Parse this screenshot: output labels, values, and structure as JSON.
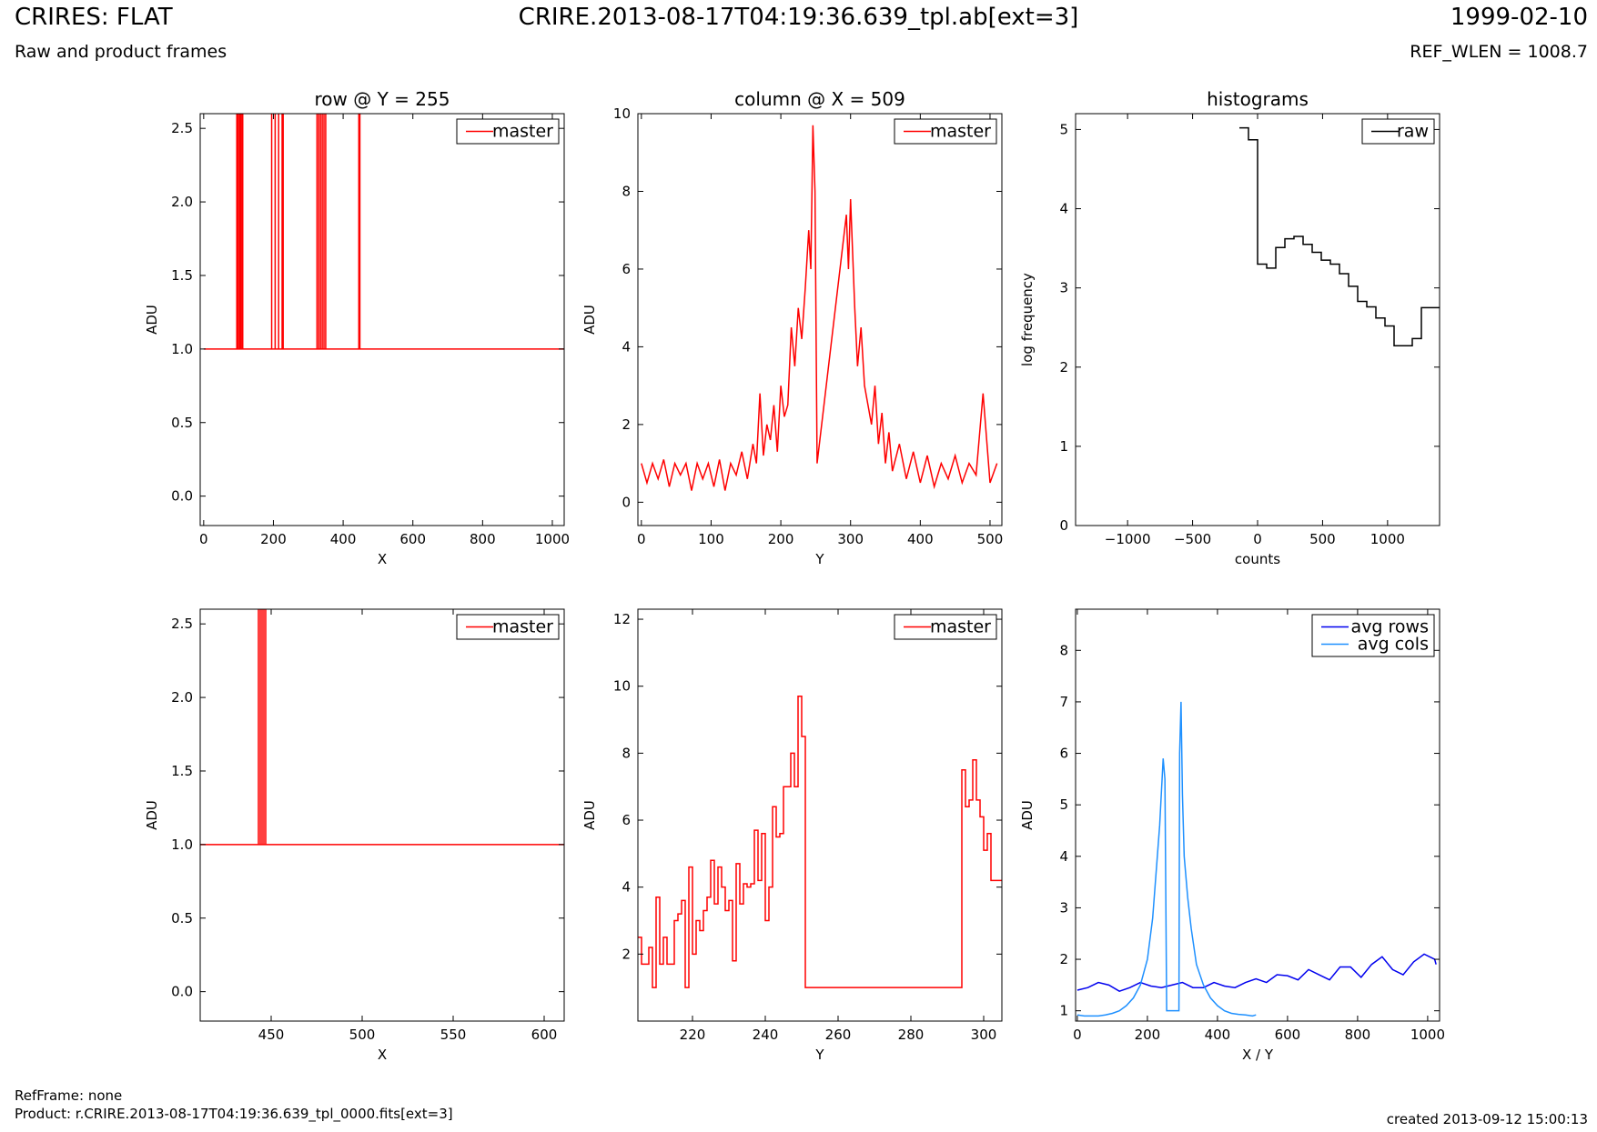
{
  "header": {
    "title": "CRIRES: FLAT",
    "subtitle": "Raw and product frames",
    "file": "CRIRE.2013-08-17T04:19:36.639_tpl.ab[ext=3]",
    "date": "1999-02-10",
    "ref_wlen": "REF_WLEN = 1008.7"
  },
  "footer": {
    "ref_frame": "RefFrame: none",
    "product": "Product: r.CRIRE.2013-08-17T04:19:36.639_tpl_0000.fits[ext=3]",
    "created": "created 2013-09-12 15:00:13"
  },
  "colors": {
    "master": "#ff0000",
    "raw": "#000000",
    "avg_rows": "#0000ee",
    "avg_cols": "#1e90ff"
  },
  "chart_data": [
    {
      "id": "row-plot",
      "type": "line",
      "title": "row @ Y = 255",
      "xlabel": "X",
      "ylabel": "ADU",
      "xlim": [
        -10,
        1034
      ],
      "ylim": [
        -0.2,
        2.6
      ],
      "xticks": [
        0,
        200,
        400,
        600,
        800,
        1000
      ],
      "yticks": [
        0.0,
        0.5,
        1.0,
        1.5,
        2.0,
        2.5
      ],
      "legend": "top-right",
      "series": [
        {
          "name": "master",
          "color": "#ff0000",
          "baseline": 1.0,
          "spikes": [
            95,
            98,
            102,
            105,
            108,
            112,
            195,
            205,
            215,
            225,
            228,
            325,
            330,
            335,
            340,
            345,
            350,
            445,
            448
          ],
          "spike_value": 2.6,
          "x_range": [
            0,
            1034
          ]
        }
      ]
    },
    {
      "id": "column-plot",
      "type": "line",
      "title": "column @ X = 509",
      "xlabel": "Y",
      "ylabel": "ADU",
      "xlim": [
        -5,
        517
      ],
      "ylim": [
        -0.6,
        10.0
      ],
      "xticks": [
        0,
        100,
        200,
        300,
        400,
        500
      ],
      "yticks": [
        0,
        2,
        4,
        6,
        8,
        10
      ],
      "legend": "top-right",
      "series": [
        {
          "name": "master",
          "color": "#ff0000",
          "x": [
            0,
            8,
            16,
            24,
            32,
            40,
            48,
            56,
            64,
            72,
            80,
            88,
            96,
            104,
            112,
            120,
            128,
            136,
            144,
            152,
            160,
            165,
            170,
            175,
            180,
            185,
            190,
            195,
            200,
            205,
            210,
            215,
            220,
            225,
            230,
            235,
            240,
            243,
            246,
            249,
            252,
            294,
            297,
            300,
            303,
            306,
            310,
            315,
            320,
            325,
            330,
            335,
            340,
            345,
            350,
            355,
            360,
            370,
            380,
            390,
            400,
            410,
            420,
            430,
            440,
            450,
            460,
            470,
            480,
            490,
            500,
            510
          ],
          "y": [
            1.0,
            0.5,
            1.0,
            0.6,
            1.1,
            0.4,
            1.0,
            0.7,
            1.0,
            0.3,
            1.0,
            0.6,
            1.0,
            0.4,
            1.1,
            0.3,
            1.0,
            0.7,
            1.3,
            0.6,
            1.5,
            1.0,
            2.8,
            1.2,
            2.0,
            1.6,
            2.5,
            1.3,
            3.0,
            2.2,
            2.5,
            4.5,
            3.5,
            5.0,
            4.2,
            5.5,
            7.0,
            6.0,
            9.7,
            8.0,
            1.0,
            7.4,
            6.0,
            7.8,
            6.4,
            5.0,
            3.5,
            4.5,
            3.0,
            2.5,
            2.0,
            3.0,
            1.5,
            2.3,
            1.0,
            1.8,
            0.8,
            1.5,
            0.6,
            1.3,
            0.5,
            1.2,
            0.4,
            1.0,
            0.6,
            1.2,
            0.5,
            1.0,
            0.7,
            2.8,
            0.5,
            1.0
          ]
        }
      ]
    },
    {
      "id": "histogram-plot",
      "type": "line",
      "title": "histograms",
      "xlabel": "counts",
      "ylabel": "log frequency",
      "xlim": [
        -1400,
        1400
      ],
      "ylim": [
        0,
        5.2
      ],
      "xticks": [
        -1000,
        -500,
        0,
        500,
        1000
      ],
      "yticks": [
        0,
        1,
        2,
        3,
        4,
        5
      ],
      "legend": "top-right",
      "series": [
        {
          "name": "raw",
          "color": "#000000",
          "step": true,
          "x": [
            -140,
            -70,
            0,
            70,
            140,
            210,
            280,
            350,
            420,
            490,
            560,
            630,
            700,
            770,
            840,
            910,
            980,
            1050,
            1120,
            1190,
            1260,
            1330,
            1400
          ],
          "y": [
            5.02,
            4.87,
            3.3,
            3.25,
            3.51,
            3.62,
            3.65,
            3.55,
            3.45,
            3.35,
            3.3,
            3.18,
            3.02,
            2.83,
            2.76,
            2.62,
            2.52,
            2.27,
            2.27,
            2.36,
            2.75,
            2.75,
            2.75
          ]
        }
      ]
    },
    {
      "id": "row-zoom-plot",
      "type": "line",
      "title": "",
      "xlabel": "X",
      "ylabel": "ADU",
      "xlim": [
        411,
        611
      ],
      "ylim": [
        -0.2,
        2.6
      ],
      "xticks": [
        450,
        500,
        550,
        600
      ],
      "yticks": [
        0.0,
        0.5,
        1.0,
        1.5,
        2.0,
        2.5
      ],
      "legend": "top-right",
      "series": [
        {
          "name": "master",
          "color": "#ff0000",
          "baseline": 1.0,
          "spikes": [
            443,
            444,
            445,
            446,
            447
          ],
          "spike_value": 2.6,
          "x_range": [
            411,
            611
          ]
        }
      ]
    },
    {
      "id": "column-zoom-plot",
      "type": "line",
      "title": "",
      "xlabel": "Y",
      "ylabel": "ADU",
      "xlim": [
        205,
        305
      ],
      "ylim": [
        0,
        12.3
      ],
      "xticks": [
        220,
        240,
        260,
        280,
        300
      ],
      "yticks": [
        2,
        4,
        6,
        8,
        10,
        12
      ],
      "legend": "top-right",
      "series": [
        {
          "name": "master",
          "color": "#ff0000",
          "step": true,
          "x": [
            205,
            206,
            208,
            209,
            210,
            211,
            212,
            213,
            214,
            215,
            216,
            217,
            218,
            219,
            220,
            221,
            222,
            223,
            224,
            225,
            226,
            227,
            228,
            229,
            230,
            231,
            232,
            233,
            234,
            235,
            236,
            237,
            238,
            239,
            240,
            241,
            242,
            243,
            244,
            245,
            246,
            247,
            248,
            249,
            250,
            251,
            252,
            294,
            295,
            296,
            297,
            298,
            299,
            300,
            301,
            302,
            303,
            304,
            305
          ],
          "y": [
            2.5,
            1.7,
            2.2,
            1.0,
            3.7,
            1.7,
            2.5,
            1.7,
            1.7,
            3.0,
            3.2,
            3.6,
            1.0,
            4.6,
            2.0,
            3.0,
            2.7,
            3.3,
            3.7,
            4.8,
            3.5,
            4.6,
            4.0,
            3.3,
            3.6,
            1.8,
            4.7,
            3.5,
            4.1,
            4.0,
            4.1,
            5.7,
            4.2,
            5.6,
            3.0,
            4.0,
            6.4,
            5.5,
            5.6,
            7.0,
            7.0,
            8.0,
            7.0,
            9.7,
            8.5,
            1.0,
            1.0,
            7.5,
            6.4,
            6.6,
            7.8,
            6.6,
            6.1,
            5.1,
            5.6,
            4.2,
            4.2,
            4.2,
            4.2
          ]
        }
      ]
    },
    {
      "id": "average-plot",
      "type": "line",
      "title": "",
      "xlabel": "X / Y",
      "ylabel": "ADU",
      "xlim": [
        -5,
        1034
      ],
      "ylim": [
        0.8,
        8.8
      ],
      "xticks": [
        0,
        200,
        400,
        600,
        800,
        1000
      ],
      "yticks": [
        1,
        2,
        3,
        4,
        5,
        6,
        7,
        8
      ],
      "legend": "top-right",
      "series": [
        {
          "name": "avg rows",
          "color": "#0000ee",
          "x": [
            0,
            30,
            60,
            90,
            120,
            150,
            180,
            210,
            240,
            270,
            300,
            330,
            360,
            390,
            420,
            450,
            480,
            510,
            540,
            570,
            600,
            630,
            660,
            690,
            720,
            750,
            780,
            810,
            840,
            870,
            900,
            930,
            960,
            990,
            1020,
            1024
          ],
          "y": [
            1.4,
            1.45,
            1.55,
            1.5,
            1.38,
            1.45,
            1.55,
            1.48,
            1.45,
            1.5,
            1.55,
            1.45,
            1.45,
            1.55,
            1.48,
            1.45,
            1.55,
            1.62,
            1.55,
            1.7,
            1.68,
            1.6,
            1.8,
            1.7,
            1.6,
            1.85,
            1.85,
            1.65,
            1.9,
            2.05,
            1.8,
            1.7,
            1.95,
            2.1,
            2.0,
            1.9
          ]
        },
        {
          "name": "avg cols",
          "color": "#1e90ff",
          "x": [
            0,
            20,
            40,
            60,
            80,
            100,
            120,
            140,
            160,
            180,
            200,
            215,
            225,
            235,
            245,
            250,
            255,
            290,
            292,
            296,
            300,
            305,
            315,
            325,
            340,
            360,
            380,
            400,
            420,
            440,
            460,
            480,
            500,
            510
          ],
          "y": [
            0.92,
            0.9,
            0.9,
            0.9,
            0.92,
            0.95,
            1.0,
            1.1,
            1.25,
            1.5,
            2.0,
            2.8,
            3.7,
            4.6,
            5.9,
            5.5,
            1.0,
            1.0,
            6.0,
            7.0,
            5.2,
            4.0,
            3.2,
            2.6,
            1.9,
            1.5,
            1.25,
            1.1,
            1.0,
            0.95,
            0.93,
            0.92,
            0.9,
            0.92
          ]
        }
      ]
    }
  ]
}
